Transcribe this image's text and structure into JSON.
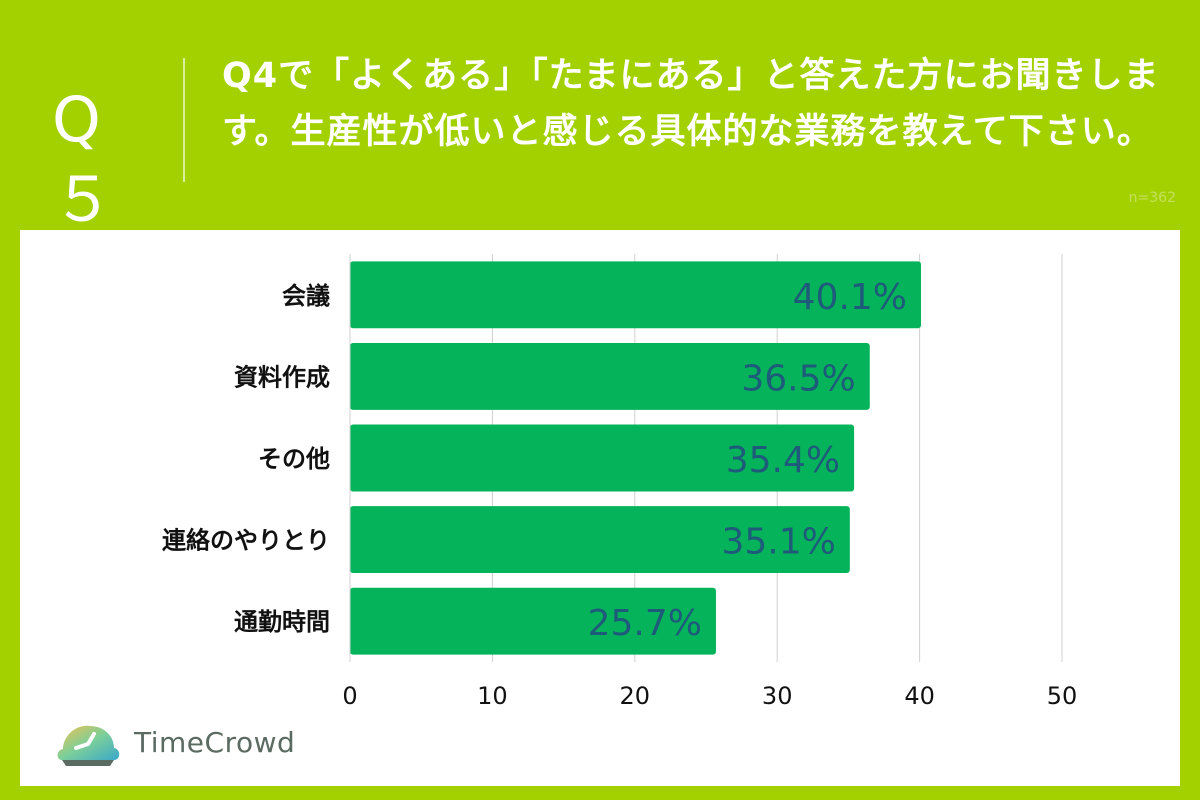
{
  "header": {
    "question_number": "Q５",
    "question_text": "Q4で「よくある」「たまにある」と答えた方にお聞きします。生産性が低いと感じる具体的な業務を教えて下さい。",
    "sample_size": "n=362"
  },
  "brand": {
    "name": "TimeCrowd",
    "logo_icon": "clock-cloud-logo-icon"
  },
  "colors": {
    "background": "#a3d100",
    "bar": "#05b35b",
    "value_label": "#1e5b7a",
    "grid": "#d0d0d0"
  },
  "chart_data": {
    "type": "bar",
    "orientation": "horizontal",
    "categories": [
      "会議",
      "資料作成",
      "その他",
      "連絡のやりとり",
      "通勤時間"
    ],
    "values": [
      40.1,
      36.5,
      35.4,
      35.1,
      25.7
    ],
    "value_labels": [
      "40.1%",
      "36.5%",
      "35.4%",
      "35.1%",
      "25.7%"
    ],
    "xlim": [
      0,
      50
    ],
    "xticks": [
      0,
      10,
      20,
      30,
      40,
      50
    ],
    "grid": true,
    "legend": "none"
  }
}
